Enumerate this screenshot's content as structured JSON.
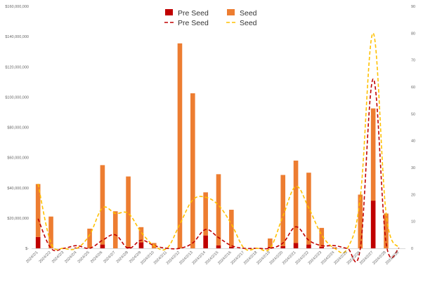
{
  "chart_data": {
    "type": "bar",
    "stacked": true,
    "categories": [
      "2024/2/1",
      "2024/2/2",
      "2024/2/3",
      "2024/2/4",
      "2024/2/5",
      "2024/2/6",
      "2024/2/7",
      "2024/2/8",
      "2024/2/9",
      "2024/2/10",
      "2024/2/11",
      "2024/2/12",
      "2024/2/13",
      "2024/2/14",
      "2024/2/15",
      "2024/2/16",
      "2024/2/17",
      "2024/2/18",
      "2024/2/19",
      "2024/2/20",
      "2024/2/21",
      "2024/2/22",
      "2024/2/23",
      "2024/2/24",
      "2024/2/25",
      "2024/2/26",
      "2024/2/27",
      "2024/2/28",
      "2024/2/29"
    ],
    "bar_series": [
      {
        "name": "Pre Seed",
        "color": "#c00000",
        "axis": "left",
        "values": [
          7500000,
          0,
          0,
          500000,
          0,
          2500000,
          0,
          1000000,
          4000000,
          0,
          0,
          0,
          0,
          8500000,
          2000000,
          1000000,
          0,
          0,
          1000000,
          1500000,
          3500000,
          2500000,
          1000000,
          500000,
          0,
          0,
          31500000,
          0,
          0
        ]
      },
      {
        "name": "Seed",
        "color": "#ed7d31",
        "axis": "left",
        "values": [
          35000000,
          21000000,
          0,
          0,
          13000000,
          52500000,
          24500000,
          46500000,
          10000000,
          3500000,
          0,
          135500000,
          102500000,
          28500000,
          47000000,
          24500000,
          0,
          0,
          5500000,
          47000000,
          54500000,
          47500000,
          12500000,
          0,
          0,
          35500000,
          61000000,
          23000000,
          0
        ]
      }
    ],
    "line_series": [
      {
        "name": "Pre Seed",
        "color": "#c00000",
        "style": "dashed",
        "axis": "right",
        "values": [
          11,
          0,
          0,
          1,
          0,
          3,
          5,
          0,
          3,
          1,
          0,
          0,
          2,
          7,
          4,
          1,
          0,
          0,
          0,
          2,
          8,
          3,
          1,
          1,
          0,
          0,
          63,
          2,
          0
        ]
      },
      {
        "name": "Seed",
        "color": "#ffc000",
        "style": "dashed",
        "axis": "right",
        "values": [
          24,
          2,
          0,
          0,
          5,
          15,
          13,
          13,
          6,
          1,
          0,
          9,
          18,
          19,
          16,
          9,
          0,
          0,
          0,
          12,
          23,
          15,
          5,
          0,
          0,
          19,
          80,
          13,
          0
        ]
      }
    ],
    "y_left": {
      "min": 0,
      "max": 160000000,
      "ticks": [
        "$-",
        "$20,000,000",
        "$40,000,000",
        "$60,000,000",
        "$80,000,000",
        "$100,000,000",
        "$120,000,000",
        "$140,000,000",
        "$160,000,000"
      ]
    },
    "y_right": {
      "min": 0,
      "max": 90,
      "ticks": [
        "0",
        "10",
        "20",
        "30",
        "40",
        "50",
        "60",
        "70",
        "80",
        "90"
      ]
    },
    "legend": {
      "placement": "top-center",
      "items": [
        {
          "label": "Pre Seed",
          "kind": "bar",
          "color": "#c00000"
        },
        {
          "label": "Seed",
          "kind": "bar",
          "color": "#ed7d31"
        },
        {
          "label": "Pre Seed",
          "kind": "line",
          "color": "#c00000"
        },
        {
          "label": "Seed",
          "kind": "line",
          "color": "#ffc000"
        }
      ]
    },
    "grid": false,
    "title": "",
    "xlabel": "",
    "ylabel": ""
  }
}
